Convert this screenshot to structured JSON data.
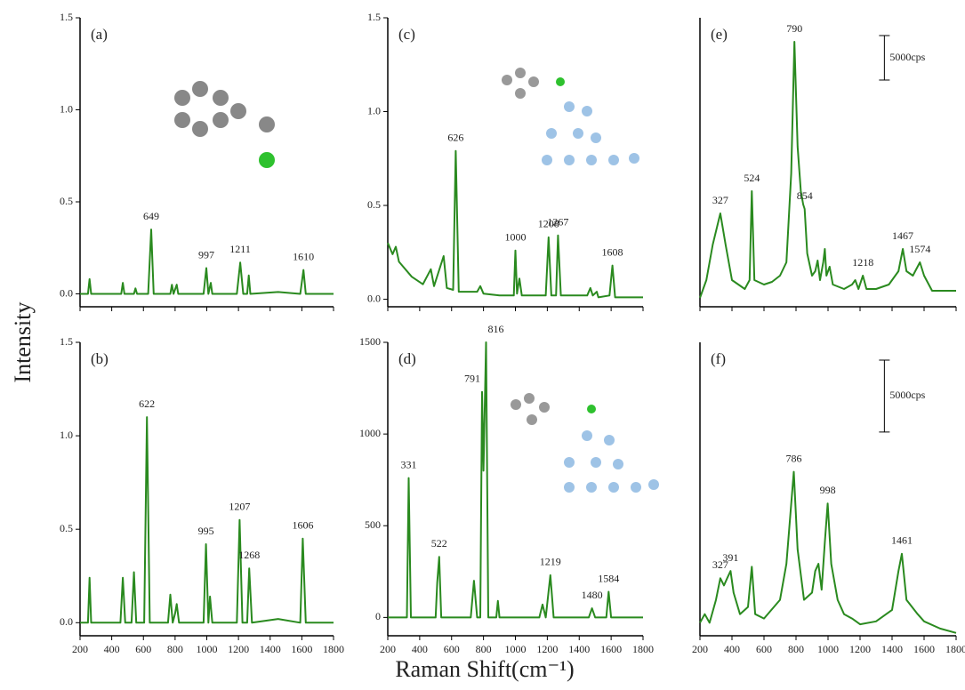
{
  "y_label": "Intensity",
  "x_label": "Raman Shift(cm⁻¹)",
  "chart_data": [
    {
      "type": "line",
      "label": "(a)",
      "color": "#2a8a1f",
      "xlim": [
        200,
        1800
      ],
      "ylim": [
        -0.07,
        1.5
      ],
      "xticks": [
        200,
        400,
        600,
        800,
        1000,
        1200,
        1400,
        1600,
        1800
      ],
      "show_xtick_labels": false,
      "yticks": [
        {
          "value": 0,
          "label": "0.0"
        },
        0.5,
        {
          "value": 1,
          "label": "1.0"
        },
        1.5
      ],
      "x": [
        200,
        250,
        260,
        270,
        460,
        470,
        480,
        540,
        550,
        560,
        630,
        649,
        665,
        770,
        780,
        790,
        810,
        820,
        980,
        997,
        1010,
        1025,
        1035,
        1190,
        1211,
        1230,
        1255,
        1265,
        1275,
        1450,
        1590,
        1610,
        1625,
        1800
      ],
      "values": [
        0,
        0,
        0.08,
        0,
        0,
        0.06,
        0,
        0,
        0.03,
        0,
        0,
        0.35,
        0,
        0,
        0.05,
        0,
        0.05,
        0,
        0,
        0.14,
        0,
        0.06,
        0,
        0,
        0.17,
        0,
        0,
        0.1,
        0,
        0.01,
        0,
        0.13,
        0,
        0
      ],
      "peaks": [
        649,
        997,
        1211,
        1610
      ]
    },
    {
      "type": "line",
      "label": "(c)",
      "color": "#2a8a1f",
      "xlim": [
        200,
        1800
      ],
      "ylim": [
        -0.04,
        1.5
      ],
      "xticks": [
        200,
        400,
        600,
        800,
        1000,
        1200,
        1400,
        1600,
        1800
      ],
      "show_xtick_labels": false,
      "yticks": [
        {
          "value": 0,
          "label": "0.0"
        },
        0.5,
        {
          "value": 1,
          "label": "1.0"
        },
        1.5
      ],
      "x": [
        200,
        230,
        250,
        270,
        350,
        420,
        470,
        490,
        550,
        570,
        610,
        626,
        645,
        760,
        780,
        800,
        900,
        990,
        1000,
        1010,
        1025,
        1040,
        1150,
        1190,
        1208,
        1225,
        1255,
        1267,
        1285,
        1450,
        1470,
        1485,
        1510,
        1520,
        1590,
        1608,
        1625,
        1800
      ],
      "values": [
        0.3,
        0.24,
        0.28,
        0.2,
        0.12,
        0.08,
        0.16,
        0.07,
        0.23,
        0.06,
        0.05,
        0.79,
        0.04,
        0.04,
        0.07,
        0.03,
        0.02,
        0.02,
        0.26,
        0.03,
        0.11,
        0.02,
        0.02,
        0.02,
        0.33,
        0.02,
        0.02,
        0.34,
        0.02,
        0.02,
        0.06,
        0.02,
        0.04,
        0.01,
        0.02,
        0.18,
        0.01,
        0.01
      ],
      "peaks": [
        626,
        1000,
        1208,
        1267,
        1608
      ]
    },
    {
      "type": "line",
      "label": "(e)",
      "color": "#2a8a1f",
      "xlim": [
        200,
        1800
      ],
      "ylim": [
        0,
        32500
      ],
      "xticks": [
        200,
        400,
        600,
        800,
        1000,
        1200,
        1400,
        1600,
        1800
      ],
      "show_xtick_labels": false,
      "scale_bar": {
        "value": 5000,
        "label": "5000cps"
      },
      "x": [
        200,
        240,
        280,
        327,
        360,
        400,
        480,
        510,
        524,
        540,
        600,
        650,
        700,
        740,
        770,
        790,
        810,
        830,
        845,
        854,
        870,
        900,
        920,
        935,
        950,
        970,
        980,
        990,
        1010,
        1030,
        1100,
        1150,
        1170,
        1190,
        1218,
        1240,
        1300,
        1380,
        1440,
        1467,
        1490,
        1530,
        1574,
        1600,
        1650,
        1800
      ],
      "values": [
        1000,
        3000,
        7000,
        10500,
        7000,
        3000,
        2000,
        3000,
        13000,
        3000,
        2500,
        2800,
        3500,
        5000,
        15000,
        29800,
        18000,
        13000,
        11500,
        11000,
        6000,
        3500,
        4000,
        5200,
        3000,
        5000,
        6500,
        3500,
        4500,
        2500,
        2000,
        2500,
        3000,
        2000,
        3500,
        2000,
        2000,
        2500,
        4000,
        6500,
        4000,
        3500,
        5000,
        3500,
        1800,
        1800
      ],
      "peaks": [
        327,
        524,
        790,
        854,
        1218,
        1467,
        1574
      ]
    },
    {
      "type": "line",
      "label": "(b)",
      "color": "#2a8a1f",
      "xlim": [
        200,
        1800
      ],
      "ylim": [
        -0.07,
        1.5
      ],
      "xticks": [
        200,
        400,
        600,
        800,
        1000,
        1200,
        1400,
        1600,
        1800
      ],
      "show_xtick_labels": true,
      "yticks": [
        {
          "value": 0,
          "label": "0.0"
        },
        0.5,
        {
          "value": 1,
          "label": "1.0"
        },
        1.5
      ],
      "x": [
        200,
        250,
        260,
        270,
        455,
        470,
        485,
        525,
        540,
        555,
        605,
        622,
        640,
        755,
        770,
        785,
        800,
        810,
        825,
        980,
        995,
        1010,
        1020,
        1035,
        1190,
        1207,
        1225,
        1255,
        1268,
        1285,
        1450,
        1590,
        1606,
        1625,
        1800
      ],
      "values": [
        0,
        0,
        0.24,
        0,
        0,
        0.24,
        0,
        0,
        0.27,
        0,
        0,
        1.1,
        0,
        0,
        0.15,
        0,
        0.05,
        0.1,
        0,
        0,
        0.42,
        0,
        0.14,
        0,
        0,
        0.55,
        0,
        0,
        0.29,
        0,
        0.02,
        0,
        0.45,
        0,
        0
      ],
      "peaks": [
        622,
        995,
        1207,
        1268,
        1606
      ]
    },
    {
      "type": "line",
      "label": "(d)",
      "color": "#2a8a1f",
      "xlim": [
        200,
        1800
      ],
      "ylim": [
        -100,
        1500
      ],
      "xticks": [
        200,
        400,
        600,
        800,
        1000,
        1200,
        1400,
        1600,
        1800
      ],
      "show_xtick_labels": true,
      "yticks": [
        0,
        500,
        1000,
        1500
      ],
      "x": [
        200,
        320,
        331,
        345,
        500,
        510,
        522,
        535,
        720,
        740,
        760,
        780,
        791,
        800,
        816,
        830,
        880,
        890,
        900,
        1150,
        1170,
        1190,
        1219,
        1240,
        1460,
        1480,
        1500,
        1570,
        1584,
        1600,
        1800
      ],
      "values": [
        0,
        0,
        760,
        0,
        0,
        190,
        330,
        0,
        0,
        200,
        0,
        0,
        1230,
        800,
        1500,
        0,
        0,
        90,
        0,
        0,
        70,
        0,
        230,
        0,
        0,
        50,
        0,
        0,
        140,
        0,
        0
      ],
      "peaks": [
        331,
        522,
        791,
        816,
        1219,
        1480,
        1584
      ]
    },
    {
      "type": "line",
      "label": "(f)",
      "color": "#2a8a1f",
      "xlim": [
        200,
        1800
      ],
      "ylim": [
        0,
        20400
      ],
      "xticks": [
        200,
        400,
        600,
        800,
        1000,
        1200,
        1400,
        1600,
        1800
      ],
      "show_xtick_labels": true,
      "scale_bar": {
        "value": 5000,
        "label": "5000cps"
      },
      "x": [
        200,
        230,
        260,
        300,
        327,
        350,
        370,
        391,
        410,
        450,
        500,
        524,
        545,
        600,
        700,
        740,
        786,
        810,
        850,
        900,
        920,
        940,
        960,
        980,
        998,
        1020,
        1060,
        1100,
        1150,
        1200,
        1300,
        1400,
        1440,
        1461,
        1490,
        1560,
        1600,
        1700,
        1800
      ],
      "values": [
        900,
        1500,
        900,
        2500,
        4000,
        3500,
        4000,
        4500,
        3000,
        1500,
        2000,
        4800,
        1500,
        1200,
        2500,
        5000,
        11400,
        6000,
        2500,
        3000,
        4500,
        5000,
        3200,
        6500,
        9200,
        5000,
        2500,
        1500,
        1200,
        800,
        1000,
        1800,
        4500,
        5700,
        2500,
        1500,
        1000,
        500,
        200
      ],
      "peaks": [
        327,
        391,
        786,
        998,
        1461
      ]
    }
  ]
}
